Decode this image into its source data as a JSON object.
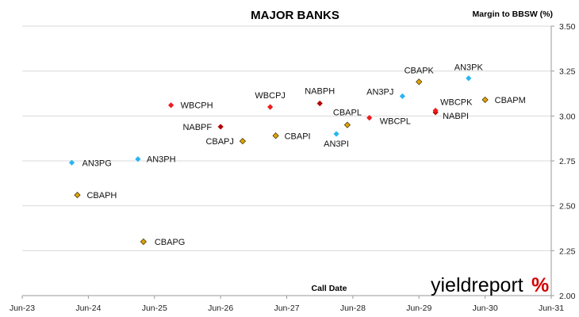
{
  "chart_data": {
    "type": "scatter",
    "title": "MAJOR BANKS",
    "xlabel": "Call Date",
    "ylabel": "Margin to BBSW (%)",
    "xlim": [
      "2023-06",
      "2031-06"
    ],
    "ylim": [
      2.0,
      3.5
    ],
    "x_ticks": [
      "Jun-23",
      "Jun-24",
      "Jun-25",
      "Jun-26",
      "Jun-27",
      "Jun-28",
      "Jun-29",
      "Jun-30",
      "Jun-31"
    ],
    "y_ticks": [
      "2.00",
      "2.25",
      "2.50",
      "2.75",
      "3.00",
      "3.25",
      "3.50"
    ],
    "y_axis_side": "right",
    "grid": "horizontal",
    "colors": {
      "ANZ": "#29b6f0",
      "CBA": "#e0a400",
      "NAB": "#b40000",
      "WBC": "#ee1c1c"
    },
    "points": [
      {
        "label": "AN3PG",
        "issuer": "ANZ",
        "date": "2024-03",
        "margin": 2.74
      },
      {
        "label": "AN3PH",
        "issuer": "ANZ",
        "date": "2025-03",
        "margin": 2.76
      },
      {
        "label": "AN3PI",
        "issuer": "ANZ",
        "date": "2028-03",
        "margin": 2.9
      },
      {
        "label": "AN3PJ",
        "issuer": "ANZ",
        "date": "2029-03",
        "margin": 3.11
      },
      {
        "label": "AN3PK",
        "issuer": "ANZ",
        "date": "2030-03",
        "margin": 3.21
      },
      {
        "label": "CBAPH",
        "issuer": "CBA",
        "date": "2024-04",
        "margin": 2.56
      },
      {
        "label": "CBAPG",
        "issuer": "CBA",
        "date": "2025-04",
        "margin": 2.3
      },
      {
        "label": "CBAPJ",
        "issuer": "CBA",
        "date": "2026-10",
        "margin": 2.86
      },
      {
        "label": "CBAPI",
        "issuer": "CBA",
        "date": "2027-04",
        "margin": 2.89
      },
      {
        "label": "CBAPL",
        "issuer": "CBA",
        "date": "2028-05",
        "margin": 2.95
      },
      {
        "label": "CBAPK",
        "issuer": "CBA",
        "date": "2029-06",
        "margin": 3.19
      },
      {
        "label": "CBAPM",
        "issuer": "CBA",
        "date": "2030-06",
        "margin": 3.09
      },
      {
        "label": "NABPF",
        "issuer": "NAB",
        "date": "2026-06",
        "margin": 2.94
      },
      {
        "label": "NABPH",
        "issuer": "NAB",
        "date": "2027-12",
        "margin": 3.07
      },
      {
        "label": "NABPI",
        "issuer": "NAB",
        "date": "2029-09",
        "margin": 3.02
      },
      {
        "label": "WBCPH",
        "issuer": "WBC",
        "date": "2025-09",
        "margin": 3.06
      },
      {
        "label": "WBCPJ",
        "issuer": "WBC",
        "date": "2027-03",
        "margin": 3.05
      },
      {
        "label": "WBCPL",
        "issuer": "WBC",
        "date": "2028-09",
        "margin": 2.99
      },
      {
        "label": "WBCPK",
        "issuer": "WBC",
        "date": "2029-09",
        "margin": 3.03
      }
    ]
  },
  "brand": {
    "logo_text": "yieldreport",
    "logo_symbol": "%"
  }
}
